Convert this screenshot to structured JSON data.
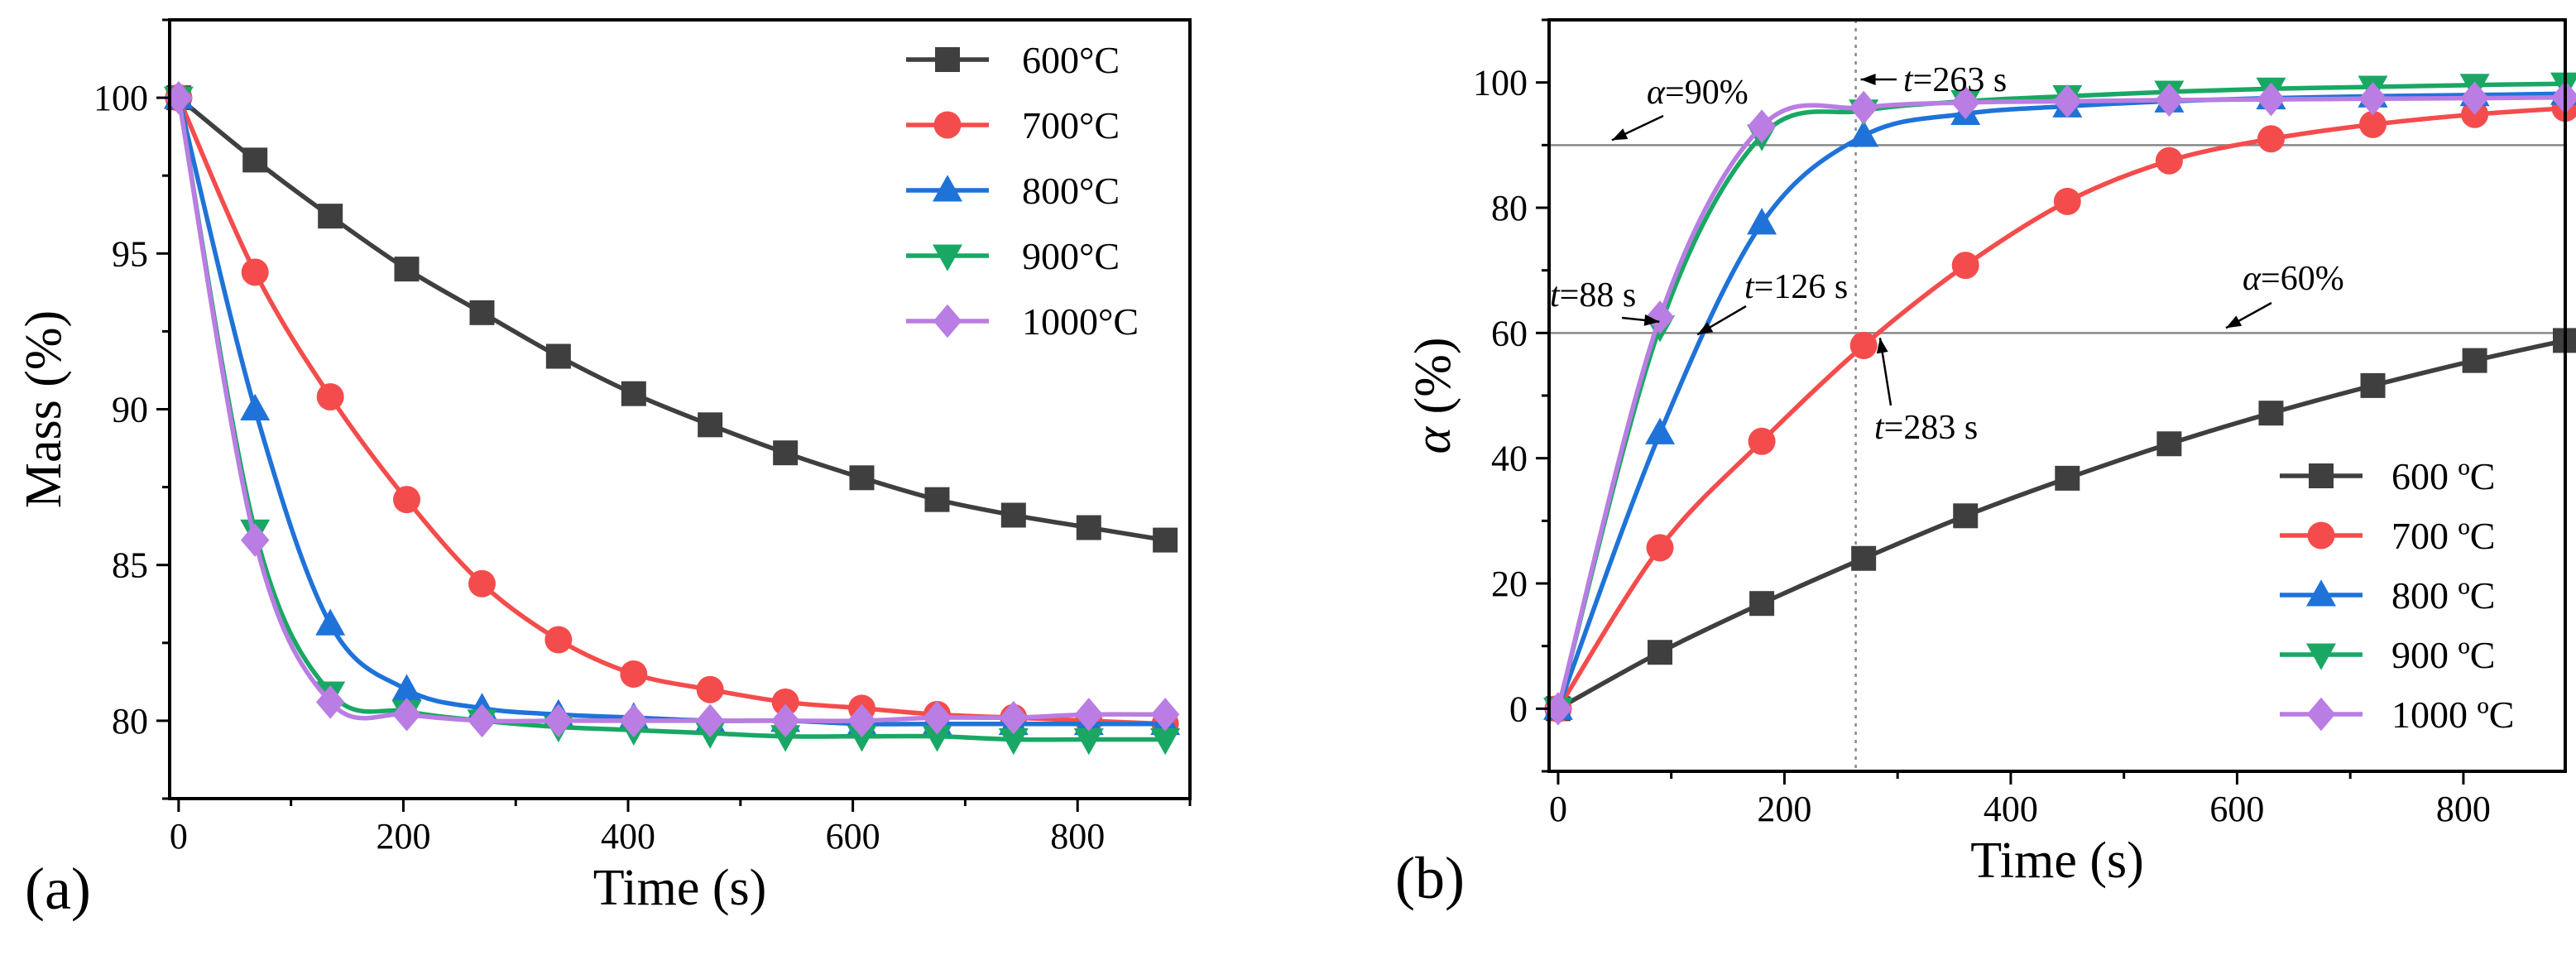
{
  "chart_data": [
    {
      "type": "line",
      "panel_label": "(a)",
      "xlabel": "Time (s)",
      "ylabel": "Mass (%)",
      "xlim": [
        -8,
        900
      ],
      "ylim": [
        77.5,
        102.5
      ],
      "xticks": [
        0,
        200,
        400,
        600,
        800
      ],
      "yticks": [
        80,
        85,
        90,
        95,
        100
      ],
      "legend_position": "top-right",
      "series": [
        {
          "name": "600°C",
          "marker": "square",
          "color": "#3f3f3f",
          "x": [
            0,
            68,
            135,
            203,
            270,
            338,
            405,
            473,
            540,
            608,
            675,
            743,
            810,
            878
          ],
          "y": [
            100,
            98.0,
            96.2,
            94.5,
            93.1,
            91.7,
            90.5,
            89.5,
            88.6,
            87.8,
            87.1,
            86.6,
            86.2,
            85.8
          ]
        },
        {
          "name": "700°C",
          "marker": "circle",
          "color": "#f44c4c",
          "x": [
            0,
            68,
            135,
            203,
            270,
            338,
            405,
            473,
            540,
            608,
            675,
            743,
            810,
            878
          ],
          "y": [
            100,
            94.4,
            90.4,
            87.1,
            84.4,
            82.6,
            81.5,
            81.0,
            80.6,
            80.4,
            80.2,
            80.1,
            80.0,
            79.9
          ]
        },
        {
          "name": "800°C",
          "marker": "triangle-up",
          "color": "#1f73d8",
          "x": [
            0,
            68,
            135,
            203,
            270,
            338,
            405,
            473,
            540,
            608,
            675,
            743,
            810,
            878
          ],
          "y": [
            100,
            90.0,
            83.1,
            81.0,
            80.4,
            80.2,
            80.1,
            80.0,
            80.0,
            79.9,
            79.9,
            79.9,
            79.9,
            79.9
          ]
        },
        {
          "name": "900°C",
          "marker": "triangle-down",
          "color": "#19a864",
          "x": [
            0,
            68,
            135,
            203,
            270,
            338,
            405,
            473,
            540,
            608,
            675,
            743,
            810,
            878
          ],
          "y": [
            100,
            86.1,
            80.9,
            80.3,
            80.0,
            79.8,
            79.7,
            79.6,
            79.5,
            79.5,
            79.5,
            79.4,
            79.4,
            79.4
          ]
        },
        {
          "name": "1000°C",
          "marker": "diamond",
          "color": "#b97de3",
          "x": [
            0,
            68,
            135,
            203,
            270,
            338,
            405,
            473,
            540,
            608,
            675,
            743,
            810,
            878
          ],
          "y": [
            100,
            85.8,
            80.6,
            80.2,
            80.0,
            80.0,
            80.0,
            80.0,
            80.0,
            80.0,
            80.1,
            80.1,
            80.2,
            80.2
          ]
        }
      ]
    },
    {
      "type": "line",
      "panel_label": "(b)",
      "xlabel": "Time (s)",
      "ylabel": "α (%)",
      "xlim": [
        -8,
        890
      ],
      "ylim": [
        -10,
        110
      ],
      "xticks": [
        0,
        200,
        400,
        600,
        800
      ],
      "yticks": [
        0,
        20,
        40,
        60,
        80,
        100
      ],
      "legend_position": "bottom-right",
      "reference_lines": [
        {
          "axis": "y",
          "value": 90,
          "label": "α=90%"
        },
        {
          "axis": "y",
          "value": 60,
          "label": "α=60%"
        },
        {
          "axis": "x",
          "value": 263,
          "label": "t=263 s",
          "style": "dotted"
        }
      ],
      "annotations": [
        "t=88 s",
        "t=126 s",
        "t=283 s"
      ],
      "series": [
        {
          "name": "600 ºC",
          "marker": "square",
          "color": "#3f3f3f",
          "x": [
            0,
            90,
            180,
            270,
            360,
            450,
            540,
            630,
            720,
            810,
            890
          ],
          "y": [
            0,
            9.0,
            16.8,
            24.0,
            30.8,
            36.8,
            42.3,
            47.2,
            51.6,
            55.6,
            58.8
          ]
        },
        {
          "name": "700 ºC",
          "marker": "circle",
          "color": "#f44c4c",
          "x": [
            0,
            90,
            180,
            270,
            360,
            450,
            540,
            630,
            720,
            810,
            890
          ],
          "y": [
            0,
            25.7,
            42.7,
            58.0,
            70.8,
            81.0,
            87.5,
            91.0,
            93.3,
            94.9,
            95.9
          ]
        },
        {
          "name": "800 ºC",
          "marker": "triangle-up",
          "color": "#1f73d8",
          "x": [
            0,
            90,
            180,
            270,
            360,
            450,
            540,
            630,
            720,
            810,
            890
          ],
          "y": [
            0,
            44.0,
            77.5,
            91.5,
            95.0,
            96.2,
            97.0,
            97.5,
            97.8,
            98.0,
            98.2
          ]
        },
        {
          "name": "900 ºC",
          "marker": "triangle-down",
          "color": "#19a864",
          "x": [
            0,
            90,
            180,
            270,
            360,
            450,
            540,
            630,
            720,
            810,
            890
          ],
          "y": [
            0,
            61.0,
            91.5,
            95.5,
            97.0,
            97.8,
            98.5,
            99.0,
            99.3,
            99.6,
            99.8
          ]
        },
        {
          "name": "1000 ºC",
          "marker": "diamond",
          "color": "#b97de3",
          "x": [
            0,
            90,
            180,
            270,
            360,
            450,
            540,
            630,
            720,
            810,
            890
          ],
          "y": [
            0,
            62.5,
            93.0,
            96.0,
            96.8,
            97.0,
            97.2,
            97.3,
            97.4,
            97.5,
            97.6
          ]
        }
      ]
    }
  ]
}
